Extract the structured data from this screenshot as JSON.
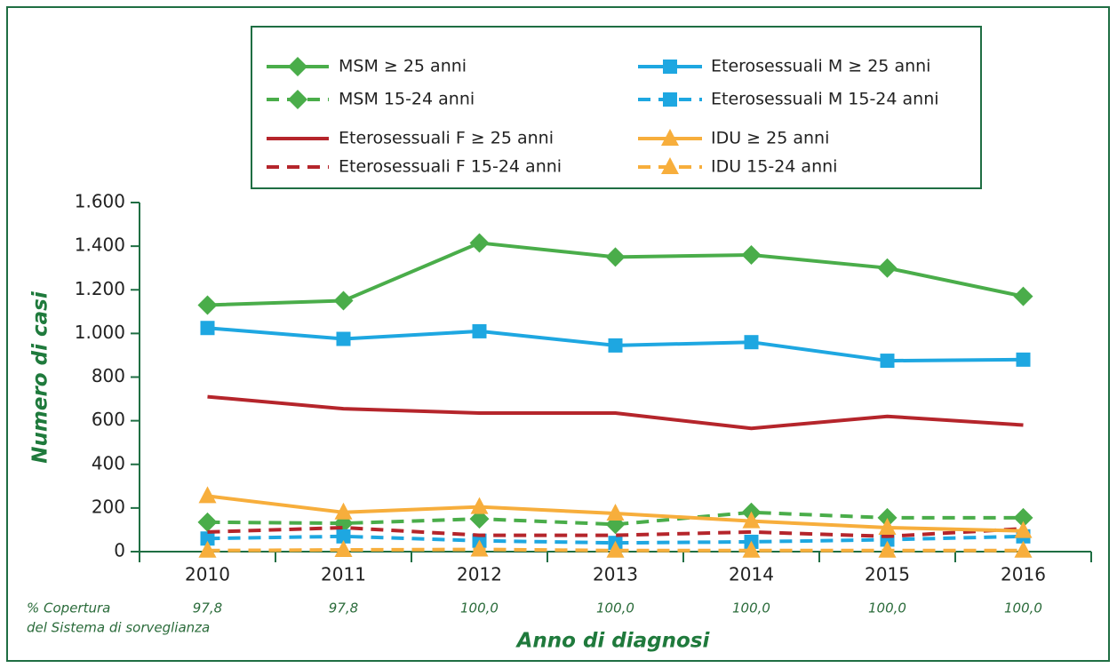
{
  "chart_data": {
    "type": "line",
    "categories": [
      "2010",
      "2011",
      "2012",
      "2013",
      "2014",
      "2015",
      "2016"
    ],
    "ylabel": "Numero di casi",
    "xlabel": "Anno di diagnosi",
    "ylim": [
      0,
      1600
    ],
    "yticks": [
      0,
      200,
      400,
      600,
      800,
      {
        "value": 1000,
        "label": "1.000"
      },
      {
        "value": 1200,
        "label": "1.200"
      },
      {
        "value": 1400,
        "label": "1.400"
      },
      {
        "value": 1600,
        "label": "1.600"
      }
    ],
    "coverage": {
      "label": [
        "% Copertura",
        "del Sistema di sorveglianza"
      ],
      "values": [
        97.8,
        97.8,
        100,
        100,
        100,
        100,
        100
      ],
      "value_labels": [
        "97,8",
        "97,8",
        "100,0",
        "100,0",
        "100,0",
        "100,0",
        "100,0"
      ]
    },
    "series": [
      {
        "name": "MSM ≥ 25 anni",
        "color": "#4aad4a",
        "dashed": false,
        "marker": "diamond",
        "values": [
          1130,
          1150,
          1415,
          1350,
          1360,
          1300,
          1170
        ]
      },
      {
        "name": "MSM 15-24 anni",
        "color": "#4aad4a",
        "dashed": true,
        "marker": "diamond",
        "values": [
          135,
          130,
          150,
          125,
          180,
          155,
          155
        ]
      },
      {
        "name": "Eterosessuali M ≥ 25 anni",
        "color": "#1ea7e1",
        "dashed": false,
        "marker": "square",
        "values": [
          1025,
          975,
          1010,
          945,
          960,
          875,
          880
        ]
      },
      {
        "name": "Eterosessuali M 15-24 anni",
        "color": "#1ea7e1",
        "dashed": true,
        "marker": "square",
        "values": [
          60,
          70,
          50,
          40,
          45,
          55,
          70
        ]
      },
      {
        "name": "Eterosessuali F ≥ 25 anni",
        "color": "#b5252b",
        "dashed": false,
        "marker": null,
        "values": [
          710,
          655,
          635,
          635,
          565,
          620,
          580
        ]
      },
      {
        "name": "Eterosessuali F 15-24 anni",
        "color": "#b5252b",
        "dashed": true,
        "marker": null,
        "values": [
          90,
          110,
          75,
          75,
          90,
          70,
          105
        ]
      },
      {
        "name": "IDU ≥ 25 anni",
        "color": "#f7ae3c",
        "dashed": false,
        "marker": "triangle",
        "values": [
          255,
          180,
          205,
          175,
          140,
          110,
          95
        ]
      },
      {
        "name": "IDU 15-24 anni",
        "color": "#f7ae3c",
        "dashed": true,
        "marker": "triangle",
        "values": [
          5,
          8,
          10,
          5,
          5,
          5,
          5
        ]
      }
    ]
  }
}
